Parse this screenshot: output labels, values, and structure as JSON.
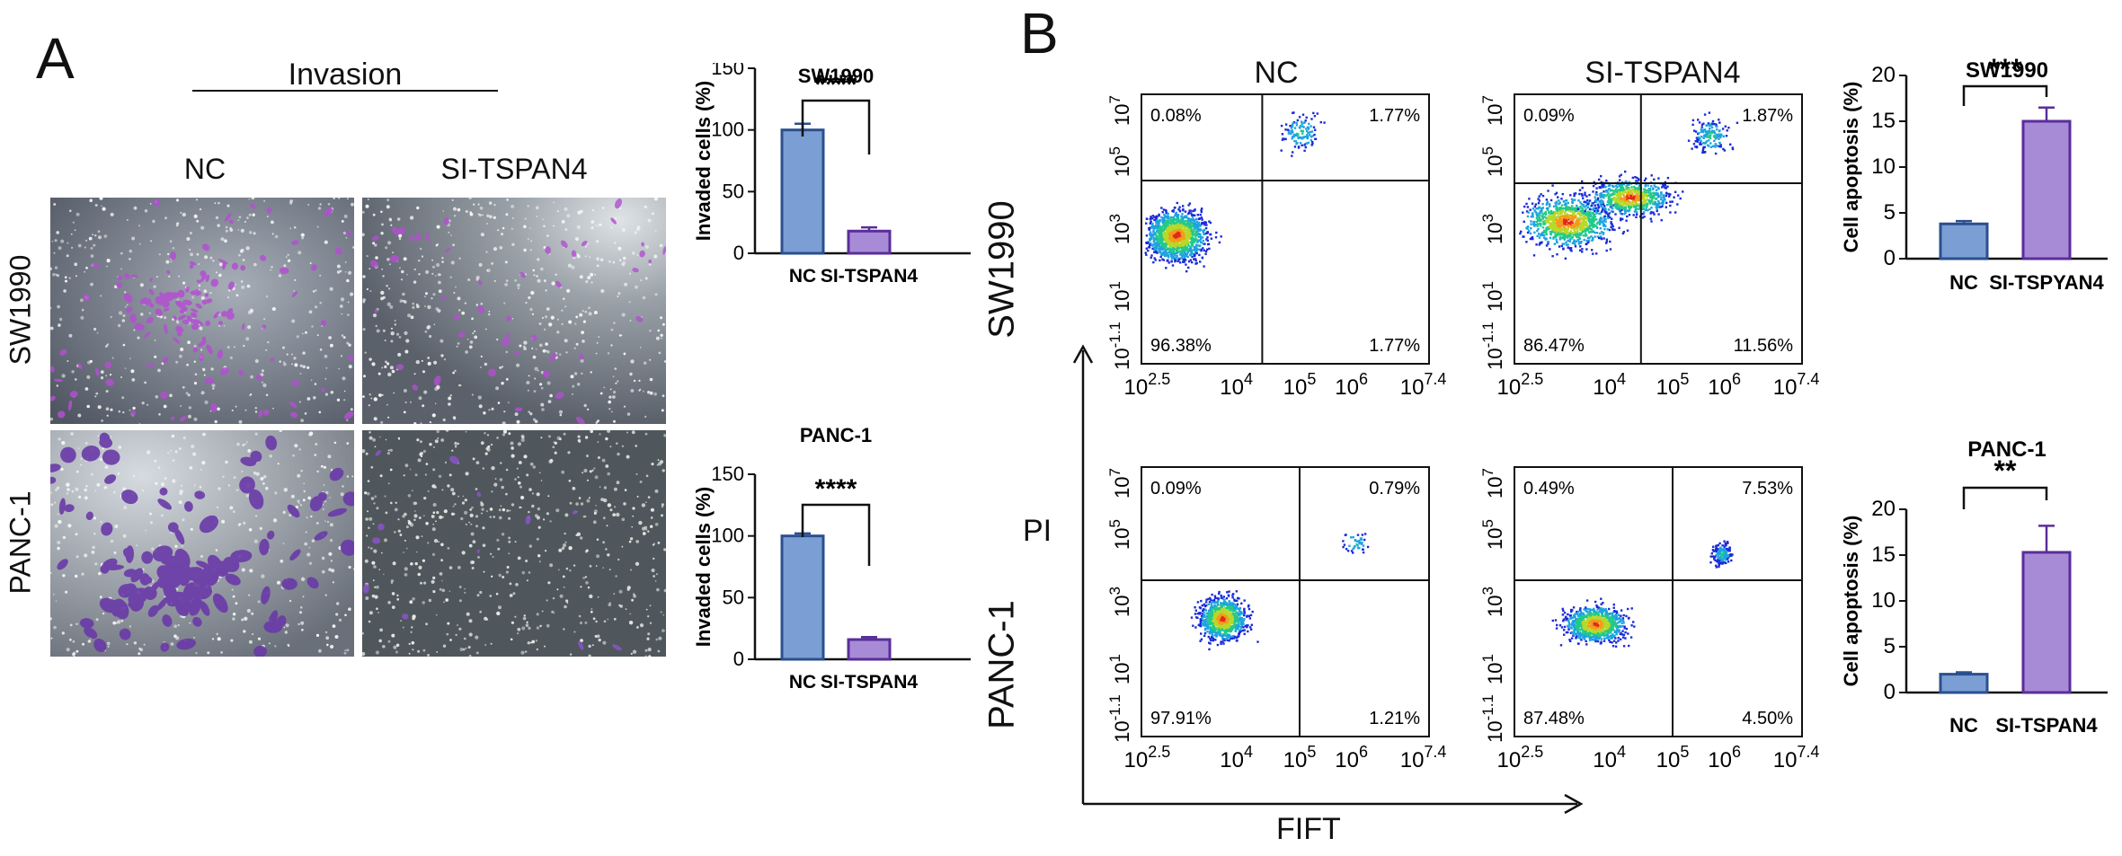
{
  "panel_a": {
    "letter": "A",
    "invasion_title": "Invasion",
    "col_labels": [
      "NC",
      "SI-TSPAN4"
    ],
    "row_labels": [
      "SW1990",
      "PANC-1"
    ]
  },
  "panel_b": {
    "letter": "B",
    "col_labels": [
      "NC",
      "SI-TSPAN4"
    ],
    "row_labels": [
      "SW1990",
      "PANC-1"
    ],
    "y_axis_label": "PI",
    "x_axis_label": "FIFT",
    "flow_plots": [
      {
        "quadrants": [
          "0.08%",
          "1.77%",
          "96.38%",
          "1.77%"
        ]
      },
      {
        "quadrants": [
          "0.09%",
          "1.87%",
          "86.47%",
          "11.56%"
        ]
      },
      {
        "quadrants": [
          "0.09%",
          "0.79%",
          "97.91%",
          "1.21%"
        ]
      },
      {
        "quadrants": [
          "0.49%",
          "7.53%",
          "87.48%",
          "4.50%"
        ]
      }
    ],
    "flow_y_ticks": [
      "10",
      "10",
      "10",
      "10",
      "10"
    ],
    "flow_y_exps": [
      "-1.1",
      "1",
      "3",
      "5",
      "7"
    ],
    "flow_x_ticks": [
      "10",
      "10",
      "10",
      "10",
      "10"
    ],
    "flow_x_exps": [
      "2.5",
      "4",
      "5",
      "6",
      "7.4"
    ]
  },
  "colors": {
    "nc_fill": "#7b9fd4",
    "nc_edge": "#2b4f8f",
    "si_fill": "#a78bd6",
    "si_edge": "#5a2e9a"
  },
  "chart_data": [
    {
      "type": "bar",
      "title": "SW1990",
      "ylabel": "Invaded cells (%)",
      "categories": [
        "NC",
        "SI-TSPAN4"
      ],
      "values": [
        100,
        18
      ],
      "errors": [
        5,
        3
      ],
      "ylim": [
        0,
        150
      ],
      "yticks": [
        "0",
        "50",
        "100",
        "150"
      ],
      "significance": "****"
    },
    {
      "type": "bar",
      "title": "PANC-1",
      "ylabel": "Invaded cells (%)",
      "categories": [
        "NC",
        "SI-TSPAN4"
      ],
      "values": [
        100,
        16
      ],
      "errors": [
        2,
        2
      ],
      "ylim": [
        0,
        150
      ],
      "yticks": [
        "0",
        "50",
        "100",
        "150"
      ],
      "significance": "****"
    },
    {
      "type": "bar",
      "title": "SW1990",
      "ylabel": "Cell apoptosis (%)",
      "categories": [
        "NC",
        "SI-TSPYAN4"
      ],
      "values": [
        3.8,
        15
      ],
      "errors": [
        0.3,
        1.5
      ],
      "ylim": [
        0,
        20
      ],
      "yticks": [
        "0",
        "5",
        "10",
        "15",
        "20"
      ],
      "significance": "***"
    },
    {
      "type": "bar",
      "title": "PANC-1",
      "ylabel": "Cell apoptosis (%)",
      "categories": [
        "NC",
        "SI-TSPAN4"
      ],
      "values": [
        2,
        15.3
      ],
      "errors": [
        0.2,
        2.9
      ],
      "ylim": [
        0,
        20
      ],
      "yticks": [
        "0",
        "5",
        "10",
        "15",
        "20"
      ],
      "significance": "**"
    }
  ]
}
